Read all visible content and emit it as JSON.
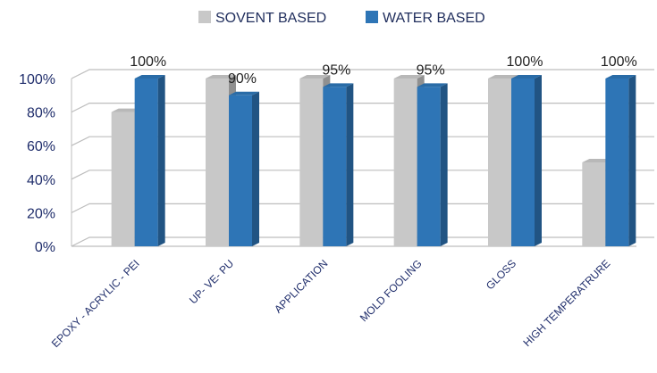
{
  "chart_data": {
    "type": "bar",
    "categories": [
      "EPOXY - ACRYLIC - PEI",
      "UP- VE- PU",
      "APPLICATION",
      "MOLD FOOLING",
      "GLOSS",
      "HIGH TEMPERATRURE"
    ],
    "series": [
      {
        "name": "SOVENT BASED",
        "values": [
          80,
          100,
          100,
          100,
          100,
          50
        ],
        "color": "#c8c8c8"
      },
      {
        "name": "WATER BASED",
        "values": [
          100,
          90,
          95,
          95,
          100,
          100
        ],
        "color": "#2e75b6"
      }
    ],
    "data_labels": [
      "100%",
      "90%",
      "95%",
      "95%",
      "100%",
      "100%"
    ],
    "y_ticks": [
      "0%",
      "20%",
      "40%",
      "60%",
      "80%",
      "100%"
    ],
    "ylim": [
      0,
      100
    ],
    "grid": true,
    "legend_position": "top-center"
  }
}
